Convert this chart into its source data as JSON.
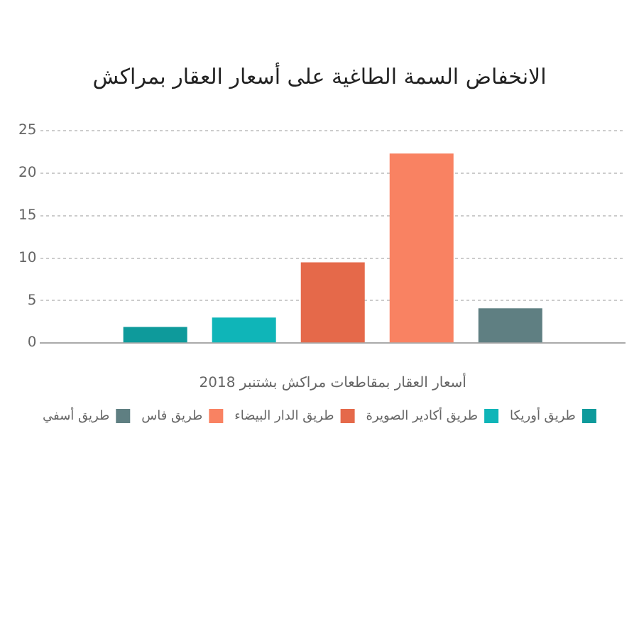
{
  "chart_data": {
    "type": "bar",
    "title": "الانخفاض السمة الطاغية على أسعار العقار بمراكش",
    "xlabel": "أسعار العقار بمقاطعات مراكش بشتنبر 2018",
    "categories": [
      null
    ],
    "series": [
      {
        "name": "طريق أوريكا",
        "color": "#0e9a9b",
        "values": [
          1.9
        ]
      },
      {
        "name": "طريق أكادير الصويرة",
        "color": "#0fb5b8",
        "values": [
          3.0
        ]
      },
      {
        "name": "طريق الدار البيضاء",
        "color": "#e5694a",
        "values": [
          9.5
        ]
      },
      {
        "name": "طريق فاس",
        "color": "#f98262",
        "values": [
          22.3
        ]
      },
      {
        "name": "طريق أسفي",
        "color": "#5f7f82",
        "values": [
          4.1
        ]
      }
    ],
    "ylim": [
      0,
      25
    ],
    "yticks": [
      0,
      5,
      10,
      15,
      20,
      25
    ],
    "grid": "y",
    "legend": "bottom"
  }
}
